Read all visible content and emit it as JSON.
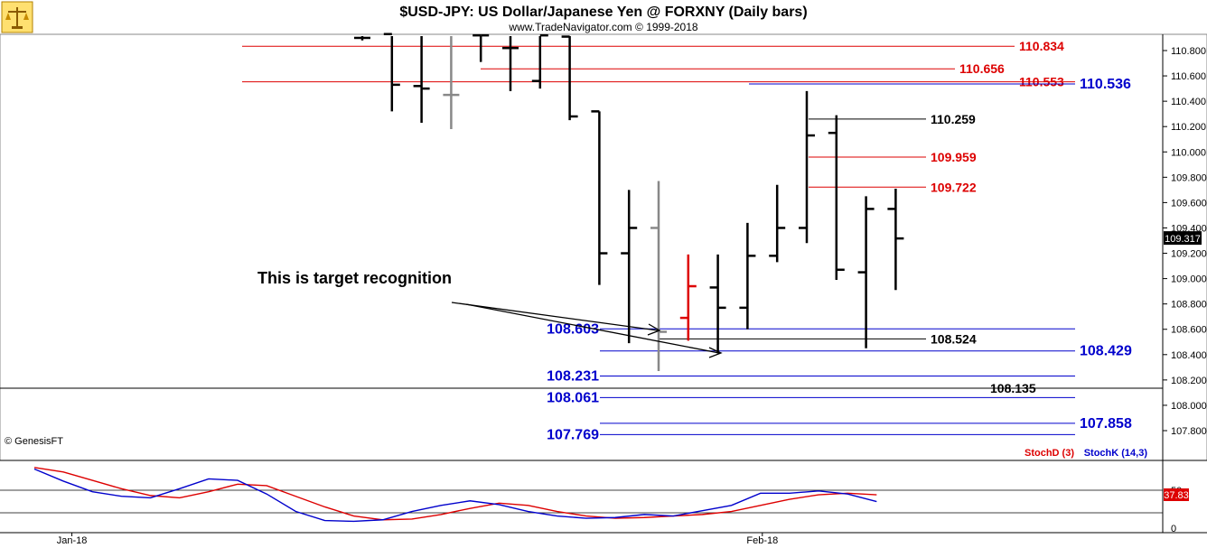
{
  "header": {
    "title": "$USD-JPY:  US Dollar/Japanese Yen @ FORXNY  (Daily bars)",
    "subtitle": "www.TradeNavigator.com © 1999-2018"
  },
  "copyright": "© GenesisFT",
  "annotation": "This is target recognition",
  "last_price_label": "109.317",
  "colors": {
    "red": "#dd0000",
    "blue": "#0000cc",
    "black": "#000000",
    "gray": "#888888"
  },
  "chart_data": [
    {
      "type": "bar",
      "subtype": "ohlc",
      "ylim": [
        107.69,
        110.9
      ],
      "y_ticks": [
        "110.800",
        "110.600",
        "110.400",
        "110.200",
        "110.000",
        "109.800",
        "109.600",
        "109.400",
        "109.200",
        "109.000",
        "108.800",
        "108.600",
        "108.400",
        "108.200",
        "108.000",
        "107.800"
      ],
      "x_tick_labels": [
        {
          "label": "Jan-18",
          "at": 2.4
        },
        {
          "label": "Feb-18",
          "at": 25.7
        }
      ],
      "last_price": 109.317,
      "bars": [
        {
          "o": 110.9,
          "h": 110.93,
          "l": 110.88,
          "c": 110.9,
          "color": "#000000"
        },
        {
          "o": 110.93,
          "h": 110.93,
          "l": 110.32,
          "c": 110.53,
          "color": "#000000"
        },
        {
          "o": 110.52,
          "h": 110.93,
          "l": 110.23,
          "c": 110.5,
          "color": "#000000"
        },
        {
          "o": 110.45,
          "h": 110.93,
          "l": 110.18,
          "c": 110.45,
          "color": "#888888"
        },
        {
          "o": 110.92,
          "h": 110.93,
          "l": 110.71,
          "c": 110.92,
          "color": "#000000"
        },
        {
          "o": 110.82,
          "h": 110.93,
          "l": 110.48,
          "c": 110.82,
          "color": "#000000"
        },
        {
          "o": 110.56,
          "h": 110.93,
          "l": 110.5,
          "c": 110.92,
          "color": "#000000"
        },
        {
          "o": 110.91,
          "h": 110.93,
          "l": 110.25,
          "c": 110.28,
          "color": "#000000"
        },
        {
          "o": 110.32,
          "h": 110.32,
          "l": 108.95,
          "c": 109.2,
          "color": "#000000"
        },
        {
          "o": 109.2,
          "h": 109.7,
          "l": 108.49,
          "c": 109.4,
          "color": "#000000"
        },
        {
          "o": 109.4,
          "h": 109.77,
          "l": 108.27,
          "c": 108.58,
          "color": "#888888"
        },
        {
          "o": 108.69,
          "h": 109.19,
          "l": 108.51,
          "c": 108.94,
          "color": "#dd0000"
        },
        {
          "o": 108.93,
          "h": 109.19,
          "l": 108.41,
          "c": 108.77,
          "color": "#000000"
        },
        {
          "o": 108.77,
          "h": 109.44,
          "l": 108.6,
          "c": 109.18,
          "color": "#000000"
        },
        {
          "o": 109.18,
          "h": 109.74,
          "l": 109.13,
          "c": 109.4,
          "color": "#000000"
        },
        {
          "o": 109.4,
          "h": 110.48,
          "l": 109.28,
          "c": 110.13,
          "color": "#000000"
        },
        {
          "o": 110.15,
          "h": 110.29,
          "l": 108.99,
          "c": 109.07,
          "color": "#000000"
        },
        {
          "o": 109.05,
          "h": 109.65,
          "l": 108.45,
          "c": 109.55,
          "color": "#000000"
        },
        {
          "o": 109.55,
          "h": 109.71,
          "l": 108.91,
          "c": 109.317,
          "color": "#000000"
        }
      ],
      "levels": [
        {
          "value": 110.834,
          "label": "110.834",
          "color": "#dd0000"
        },
        {
          "value": 110.656,
          "label": "110.656",
          "color": "#dd0000"
        },
        {
          "value": 110.553,
          "label": "110.553",
          "color": "#dd0000"
        },
        {
          "value": 110.536,
          "label": "110.536",
          "color": "#0000cc"
        },
        {
          "value": 110.259,
          "label": "110.259",
          "color": "#000000"
        },
        {
          "value": 109.959,
          "label": "109.959",
          "color": "#dd0000"
        },
        {
          "value": 109.722,
          "label": "109.722",
          "color": "#dd0000"
        },
        {
          "value": 108.603,
          "label": "108.603",
          "color": "#0000cc"
        },
        {
          "value": 108.524,
          "label": "108.524",
          "color": "#000000"
        },
        {
          "value": 108.429,
          "label": "108.429",
          "color": "#0000cc"
        },
        {
          "value": 108.231,
          "label": "108.231",
          "color": "#0000cc"
        },
        {
          "value": 108.135,
          "label": "108.135",
          "color": "#000000"
        },
        {
          "value": 108.061,
          "label": "108.061",
          "color": "#0000cc"
        },
        {
          "value": 107.858,
          "label": "107.858",
          "color": "#0000cc"
        },
        {
          "value": 107.769,
          "label": "107.769",
          "color": "#0000cc"
        }
      ]
    },
    {
      "type": "line",
      "ylim": [
        0,
        100
      ],
      "y_ticks": [
        "50",
        "0"
      ],
      "series": [
        {
          "name": "StochD (3)",
          "color": "#dd0000",
          "x": [
            0,
            1,
            2,
            3,
            4,
            5,
            6,
            7,
            8,
            9,
            10,
            11,
            12,
            13,
            14,
            15,
            16,
            17,
            18,
            19,
            20,
            21,
            22,
            23,
            24,
            25,
            26,
            27,
            28,
            29
          ],
          "values": [
            80,
            74,
            63,
            52,
            43,
            40,
            48,
            58,
            56,
            42,
            28,
            16,
            11,
            12,
            18,
            26,
            33,
            30,
            22,
            16,
            13,
            14,
            16,
            18,
            22,
            30,
            38,
            44,
            46,
            44
          ]
        },
        {
          "name": "StochK (14,3)",
          "color": "#0000cc",
          "x": [
            0,
            1,
            2,
            3,
            4,
            5,
            6,
            7,
            8,
            9,
            10,
            11,
            12,
            13,
            14,
            15,
            16,
            17,
            18,
            19,
            20,
            21,
            22,
            23,
            24,
            25,
            26,
            27,
            28,
            29
          ],
          "values": [
            78,
            62,
            48,
            42,
            40,
            52,
            65,
            63,
            45,
            22,
            10,
            9,
            11,
            22,
            30,
            36,
            31,
            22,
            16,
            13,
            14,
            18,
            16,
            23,
            30,
            46,
            46,
            49,
            45,
            35
          ]
        }
      ],
      "last_value_label": "37.83"
    }
  ]
}
